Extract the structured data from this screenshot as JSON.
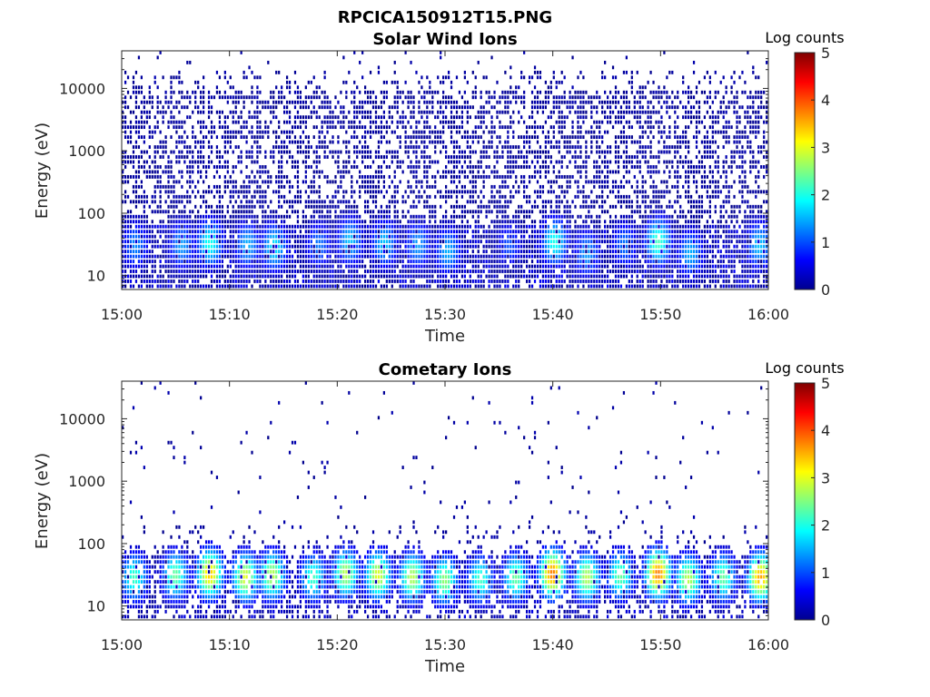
{
  "figure_title": "RPCICA150912T15.PNG",
  "chart_data": [
    {
      "type": "heatmap",
      "title": "Solar Wind Ions",
      "xlabel": "Time",
      "ylabel": "Energy (eV)",
      "yscale": "log",
      "xlim": [
        "15:00",
        "16:00"
      ],
      "ylim": [
        6,
        40000
      ],
      "x_ticks": [
        "15:00",
        "15:10",
        "15:20",
        "15:30",
        "15:40",
        "15:50",
        "16:00"
      ],
      "y_ticks": [
        "10",
        "100",
        "1000",
        "10000"
      ],
      "y_tick_values": [
        10,
        100,
        1000,
        10000
      ],
      "colorbar": {
        "label": "Log counts",
        "ticks": [
          "0",
          "1",
          "2",
          "3",
          "4",
          "5"
        ],
        "range": [
          0,
          5
        ],
        "colormap": "jet"
      },
      "background_fill": 0.55,
      "hotspots": [
        {
          "t": 1.3,
          "e": 30,
          "v": 1.3
        },
        {
          "t": 5.6,
          "e": 30,
          "v": 1.4
        },
        {
          "t": 8.2,
          "e": 32,
          "v": 2.0
        },
        {
          "t": 11.7,
          "e": 30,
          "v": 1.5
        },
        {
          "t": 14.2,
          "e": 28,
          "v": 1.8
        },
        {
          "t": 18.3,
          "e": 30,
          "v": 1.2
        },
        {
          "t": 21.2,
          "e": 35,
          "v": 1.6
        },
        {
          "t": 24.4,
          "e": 32,
          "v": 1.6
        },
        {
          "t": 27.5,
          "e": 30,
          "v": 1.4
        },
        {
          "t": 30.3,
          "e": 24,
          "v": 1.5
        },
        {
          "t": 36.0,
          "e": 30,
          "v": 1.0
        },
        {
          "t": 40.2,
          "e": 34,
          "v": 2.0
        },
        {
          "t": 43.2,
          "e": 22,
          "v": 1.4
        },
        {
          "t": 46.7,
          "e": 30,
          "v": 1.2
        },
        {
          "t": 49.8,
          "e": 34,
          "v": 2.2
        },
        {
          "t": 52.8,
          "e": 22,
          "v": 1.5
        },
        {
          "t": 59.2,
          "e": 30,
          "v": 1.6
        }
      ]
    },
    {
      "type": "heatmap",
      "title": "Cometary Ions",
      "xlabel": "Time",
      "ylabel": "Energy (eV)",
      "yscale": "log",
      "xlim": [
        "15:00",
        "16:00"
      ],
      "ylim": [
        6,
        40000
      ],
      "x_ticks": [
        "15:00",
        "15:10",
        "15:20",
        "15:30",
        "15:40",
        "15:50",
        "16:00"
      ],
      "y_ticks": [
        "10",
        "100",
        "1000",
        "10000"
      ],
      "y_tick_values": [
        10,
        100,
        1000,
        10000
      ],
      "colorbar": {
        "label": "Log counts",
        "ticks": [
          "0",
          "1",
          "2",
          "3",
          "4",
          "5"
        ],
        "range": [
          0,
          5
        ],
        "colormap": "jet"
      },
      "background_fill": 0.02,
      "hotspots": [
        {
          "t": 1.2,
          "e": 28,
          "v": 2.2
        },
        {
          "t": 5.0,
          "e": 30,
          "v": 2.4
        },
        {
          "t": 8.2,
          "e": 32,
          "v": 3.4
        },
        {
          "t": 11.5,
          "e": 28,
          "v": 3.0
        },
        {
          "t": 14.0,
          "e": 30,
          "v": 2.8
        },
        {
          "t": 17.8,
          "e": 28,
          "v": 2.2
        },
        {
          "t": 20.8,
          "e": 32,
          "v": 2.8
        },
        {
          "t": 23.8,
          "e": 30,
          "v": 3.0
        },
        {
          "t": 27.0,
          "e": 28,
          "v": 2.8
        },
        {
          "t": 30.0,
          "e": 25,
          "v": 2.6
        },
        {
          "t": 33.3,
          "e": 26,
          "v": 2.2
        },
        {
          "t": 36.6,
          "e": 28,
          "v": 2.4
        },
        {
          "t": 40.0,
          "e": 32,
          "v": 3.8
        },
        {
          "t": 43.2,
          "e": 28,
          "v": 2.8
        },
        {
          "t": 46.3,
          "e": 30,
          "v": 2.4
        },
        {
          "t": 49.8,
          "e": 32,
          "v": 3.8
        },
        {
          "t": 52.6,
          "e": 26,
          "v": 2.8
        },
        {
          "t": 55.8,
          "e": 28,
          "v": 2.4
        },
        {
          "t": 59.3,
          "e": 28,
          "v": 3.6
        }
      ]
    }
  ]
}
